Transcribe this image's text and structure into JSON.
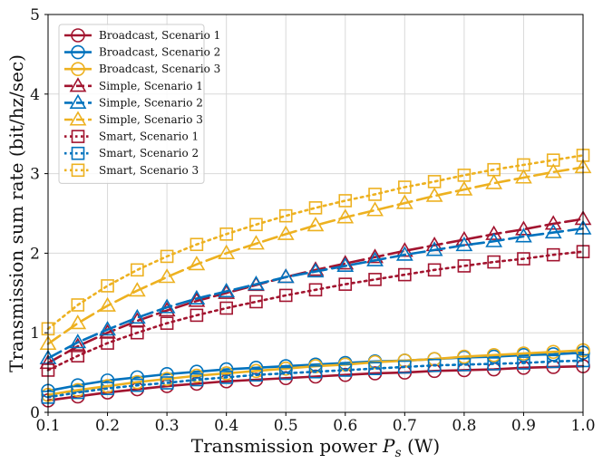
{
  "chart_data": {
    "type": "line",
    "title": "",
    "xlabel": "Transmission power P_s (W)",
    "xlabel_main": "Transmission power ",
    "xlabel_symbol": "P",
    "xlabel_subscript": "s",
    "xlabel_unit": " (W)",
    "ylabel": "Transmission sum rate (bit/hz/sec)",
    "xlim": [
      0.1,
      1.0
    ],
    "ylim": [
      0,
      5
    ],
    "xticks": [
      0.1,
      0.2,
      0.3,
      0.4,
      0.5,
      0.6,
      0.7,
      0.8,
      0.9,
      1.0
    ],
    "xtick_labels": [
      "0.1",
      "0.2",
      "0.3",
      "0.4",
      "0.5",
      "0.6",
      "0.7",
      "0.8",
      "0.9",
      "1.0"
    ],
    "yticks": [
      0,
      1,
      2,
      3,
      4,
      5
    ],
    "ytick_labels": [
      "0",
      "1",
      "2",
      "3",
      "4",
      "5"
    ],
    "grid": true,
    "legend_position": "top-left",
    "x": [
      0.1,
      0.15,
      0.2,
      0.25,
      0.3,
      0.35,
      0.4,
      0.45,
      0.5,
      0.55,
      0.6,
      0.65,
      0.7,
      0.75,
      0.8,
      0.85,
      0.9,
      0.95,
      1.0
    ],
    "series": [
      {
        "name": "Broadcast, Scenario 1",
        "color": "#a2142f",
        "dash": "solid",
        "marker": "circle",
        "values": [
          0.15,
          0.2,
          0.25,
          0.29,
          0.33,
          0.36,
          0.39,
          0.41,
          0.43,
          0.45,
          0.47,
          0.49,
          0.5,
          0.52,
          0.53,
          0.54,
          0.56,
          0.57,
          0.58
        ]
      },
      {
        "name": "Broadcast, Scenario 2",
        "color": "#0072bd",
        "dash": "solid",
        "marker": "circle",
        "values": [
          0.27,
          0.34,
          0.4,
          0.44,
          0.48,
          0.51,
          0.54,
          0.56,
          0.58,
          0.6,
          0.62,
          0.64,
          0.65,
          0.67,
          0.69,
          0.7,
          0.72,
          0.73,
          0.75
        ]
      },
      {
        "name": "Broadcast, Scenario 3",
        "color": "#edb120",
        "dash": "solid",
        "marker": "circle",
        "values": [
          0.22,
          0.28,
          0.33,
          0.38,
          0.42,
          0.46,
          0.49,
          0.52,
          0.55,
          0.58,
          0.6,
          0.63,
          0.65,
          0.67,
          0.7,
          0.72,
          0.74,
          0.76,
          0.78
        ]
      },
      {
        "name": "Simple, Scenario 1",
        "color": "#a2142f",
        "dash": "dashed",
        "marker": "triangle",
        "values": [
          0.62,
          0.83,
          1.0,
          1.15,
          1.28,
          1.4,
          1.5,
          1.6,
          1.7,
          1.79,
          1.87,
          1.95,
          2.03,
          2.1,
          2.17,
          2.24,
          2.3,
          2.37,
          2.43
        ]
      },
      {
        "name": "Simple, Scenario 2",
        "color": "#0072bd",
        "dash": "dashed",
        "marker": "triangle",
        "values": [
          0.68,
          0.88,
          1.04,
          1.19,
          1.32,
          1.43,
          1.52,
          1.61,
          1.7,
          1.77,
          1.84,
          1.91,
          1.98,
          2.04,
          2.1,
          2.15,
          2.21,
          2.26,
          2.31
        ]
      },
      {
        "name": "Simple, Scenario 3",
        "color": "#edb120",
        "dash": "dashed",
        "marker": "triangle",
        "values": [
          0.86,
          1.12,
          1.34,
          1.53,
          1.7,
          1.86,
          2.0,
          2.12,
          2.24,
          2.35,
          2.45,
          2.54,
          2.63,
          2.72,
          2.8,
          2.88,
          2.95,
          3.02,
          3.08
        ]
      },
      {
        "name": "Smart, Scenario 1",
        "color": "#a2142f",
        "dash": "dotted",
        "marker": "square",
        "values": [
          0.53,
          0.71,
          0.87,
          1.0,
          1.12,
          1.22,
          1.31,
          1.39,
          1.47,
          1.54,
          1.61,
          1.67,
          1.73,
          1.79,
          1.84,
          1.89,
          1.93,
          1.98,
          2.02
        ]
      },
      {
        "name": "Smart, Scenario 2",
        "color": "#0072bd",
        "dash": "dotted",
        "marker": "square",
        "values": [
          0.19,
          0.25,
          0.3,
          0.34,
          0.37,
          0.41,
          0.44,
          0.47,
          0.49,
          0.51,
          0.53,
          0.55,
          0.57,
          0.59,
          0.6,
          0.61,
          0.62,
          0.64,
          0.65
        ]
      },
      {
        "name": "Smart, Scenario 3",
        "color": "#edb120",
        "dash": "dotted",
        "marker": "square",
        "values": [
          1.05,
          1.35,
          1.59,
          1.79,
          1.96,
          2.11,
          2.24,
          2.36,
          2.47,
          2.57,
          2.66,
          2.74,
          2.83,
          2.9,
          2.98,
          3.05,
          3.11,
          3.17,
          3.23
        ]
      }
    ]
  }
}
